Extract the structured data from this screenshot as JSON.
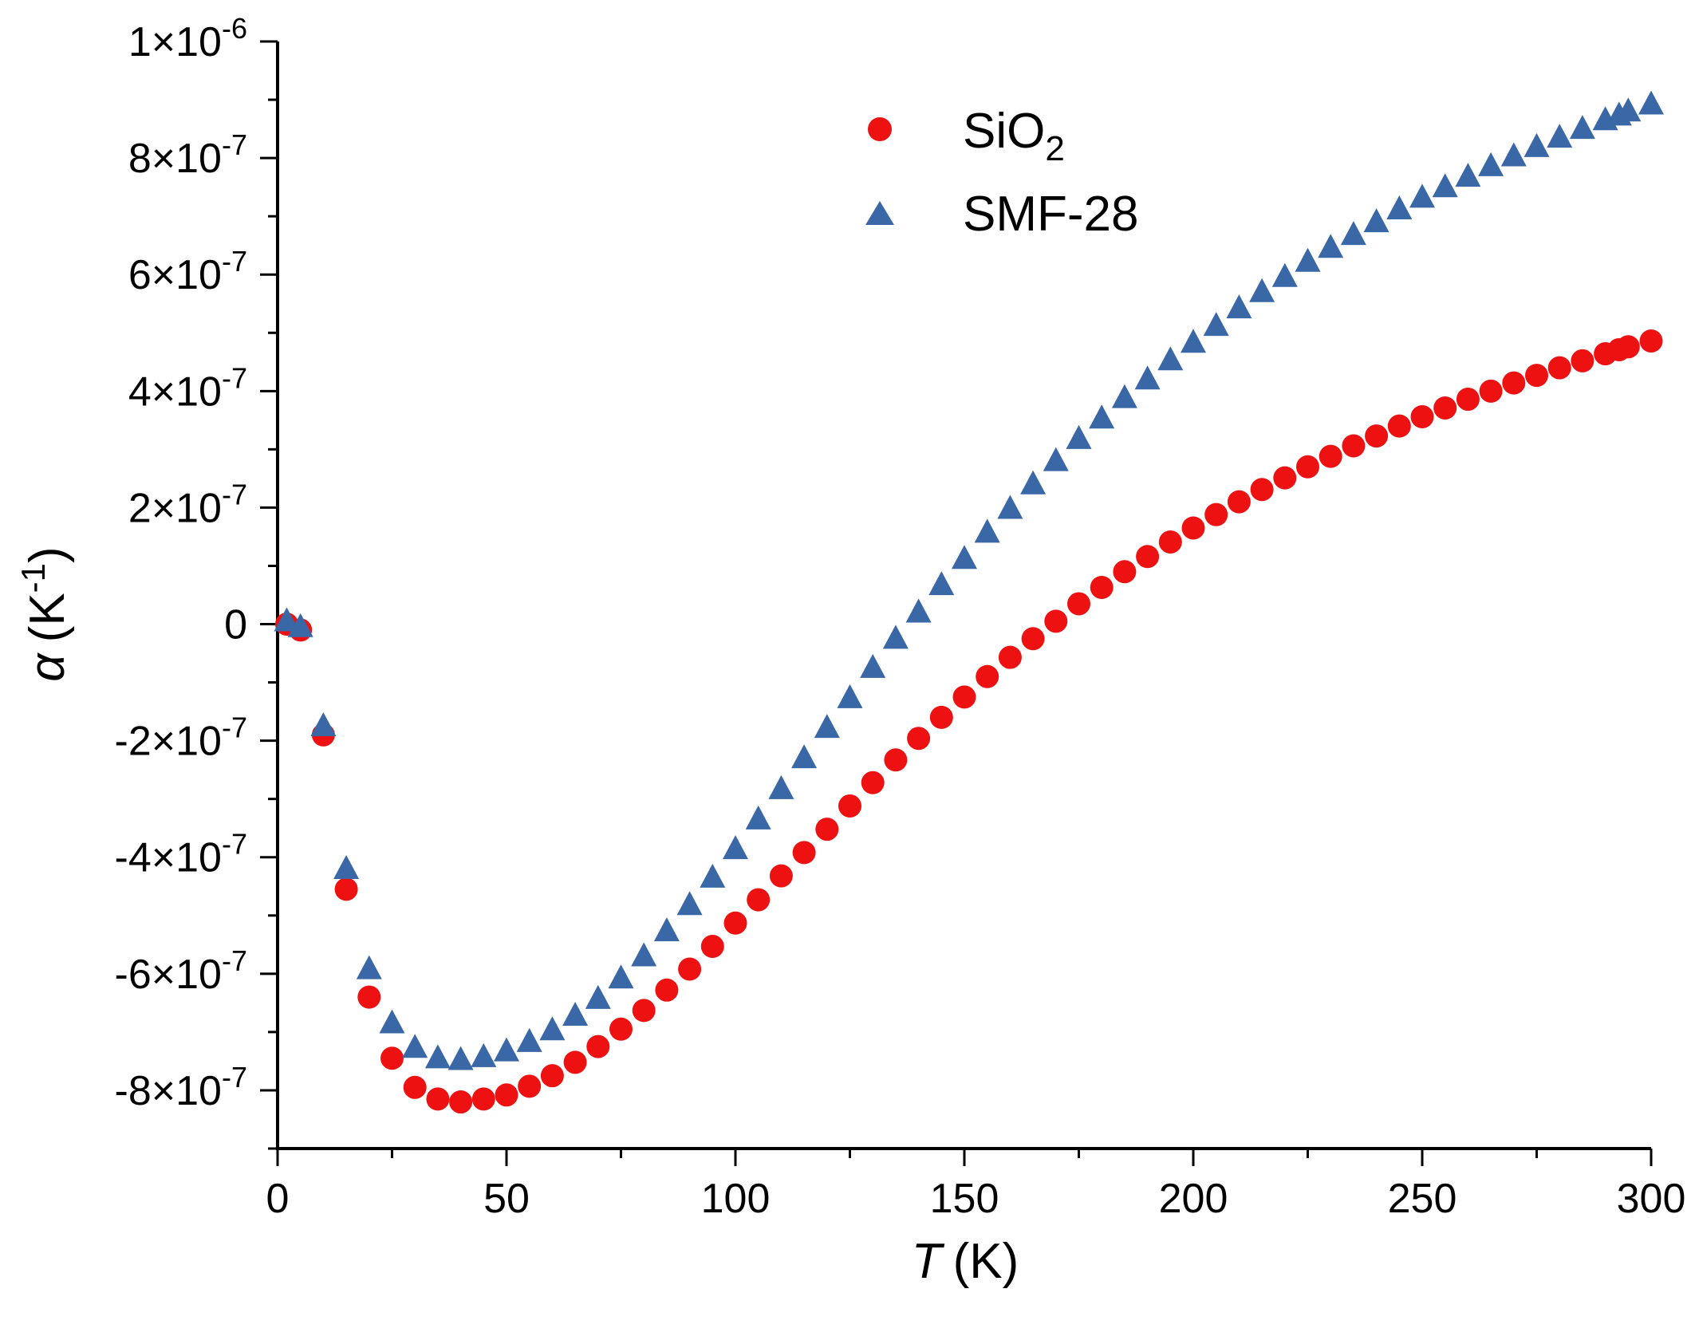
{
  "chart_data": {
    "type": "scatter",
    "title": "",
    "xlabel": {
      "symbol": "T",
      "unit": "(K)"
    },
    "ylabel": {
      "symbol": "α",
      "unit_open": "(K",
      "unit_exp": "-1",
      "unit_close": ")"
    },
    "xlim": [
      0,
      300
    ],
    "ylim": [
      -9e-07,
      1e-06
    ],
    "x_ticks": [
      {
        "value": 0,
        "label": "0"
      },
      {
        "value": 50,
        "label": "50"
      },
      {
        "value": 100,
        "label": "100"
      },
      {
        "value": 150,
        "label": "150"
      },
      {
        "value": 200,
        "label": "200"
      },
      {
        "value": 250,
        "label": "250"
      },
      {
        "value": 300,
        "label": "300"
      }
    ],
    "y_ticks": [
      {
        "value": 1e-06,
        "mantissa": "1×10",
        "exp": "-6"
      },
      {
        "value": 8e-07,
        "mantissa": "8×10",
        "exp": "-7"
      },
      {
        "value": 6e-07,
        "mantissa": "6×10",
        "exp": "-7"
      },
      {
        "value": 4e-07,
        "mantissa": "4×10",
        "exp": "-7"
      },
      {
        "value": 2e-07,
        "mantissa": "2×10",
        "exp": "-7"
      },
      {
        "value": 0,
        "mantissa": "0",
        "exp": ""
      },
      {
        "value": -2e-07,
        "mantissa": "-2×10",
        "exp": "-7"
      },
      {
        "value": -4e-07,
        "mantissa": "-4×10",
        "exp": "-7"
      },
      {
        "value": -6e-07,
        "mantissa": "-6×10",
        "exp": "-7"
      },
      {
        "value": -8e-07,
        "mantissa": "-8×10",
        "exp": "-7"
      }
    ],
    "grid": false,
    "legend_position": "top-center",
    "series": [
      {
        "name": "SiO",
        "name_sub": "2",
        "marker": "circle",
        "color": "#ee1111",
        "points": [
          [
            2,
            0
          ],
          [
            5,
            -1e-08
          ],
          [
            10,
            -1.9e-07
          ],
          [
            15,
            -4.55e-07
          ],
          [
            20,
            -6.4e-07
          ],
          [
            25,
            -7.45e-07
          ],
          [
            30,
            -7.95e-07
          ],
          [
            35,
            -8.15e-07
          ],
          [
            40,
            -8.2e-07
          ],
          [
            45,
            -8.15e-07
          ],
          [
            50,
            -8.08e-07
          ],
          [
            55,
            -7.93e-07
          ],
          [
            60,
            -7.75e-07
          ],
          [
            65,
            -7.52e-07
          ],
          [
            70,
            -7.25e-07
          ],
          [
            75,
            -6.95e-07
          ],
          [
            80,
            -6.63e-07
          ],
          [
            85,
            -6.28e-07
          ],
          [
            90,
            -5.92e-07
          ],
          [
            95,
            -5.53e-07
          ],
          [
            100,
            -5.13e-07
          ],
          [
            105,
            -4.73e-07
          ],
          [
            110,
            -4.32e-07
          ],
          [
            115,
            -3.92e-07
          ],
          [
            120,
            -3.52e-07
          ],
          [
            125,
            -3.12e-07
          ],
          [
            130,
            -2.72e-07
          ],
          [
            135,
            -2.33e-07
          ],
          [
            140,
            -1.96e-07
          ],
          [
            145,
            -1.6e-07
          ],
          [
            150,
            -1.25e-07
          ],
          [
            155,
            -9e-08
          ],
          [
            160,
            -5.7e-08
          ],
          [
            165,
            -2.5e-08
          ],
          [
            170,
            5e-09
          ],
          [
            175,
            3.5e-08
          ],
          [
            180,
            6.3e-08
          ],
          [
            185,
            9e-08
          ],
          [
            190,
            1.16e-07
          ],
          [
            195,
            1.41e-07
          ],
          [
            200,
            1.65e-07
          ],
          [
            205,
            1.88e-07
          ],
          [
            210,
            2.1e-07
          ],
          [
            215,
            2.31e-07
          ],
          [
            220,
            2.51e-07
          ],
          [
            225,
            2.7e-07
          ],
          [
            230,
            2.88e-07
          ],
          [
            235,
            3.06e-07
          ],
          [
            240,
            3.23e-07
          ],
          [
            245,
            3.4e-07
          ],
          [
            250,
            3.56e-07
          ],
          [
            255,
            3.71e-07
          ],
          [
            260,
            3.86e-07
          ],
          [
            265,
            4e-07
          ],
          [
            270,
            4.14e-07
          ],
          [
            275,
            4.27e-07
          ],
          [
            280,
            4.4e-07
          ],
          [
            285,
            4.52e-07
          ],
          [
            290,
            4.64e-07
          ],
          [
            293,
            4.71e-07
          ],
          [
            295,
            4.76e-07
          ],
          [
            300,
            4.86e-07
          ]
        ]
      },
      {
        "name": "SMF-28",
        "marker": "triangle",
        "color": "#3a67a6",
        "points": [
          [
            2,
            5e-09
          ],
          [
            5,
            -5e-09
          ],
          [
            10,
            -1.75e-07
          ],
          [
            15,
            -4.2e-07
          ],
          [
            20,
            -5.92e-07
          ],
          [
            25,
            -6.85e-07
          ],
          [
            30,
            -7.27e-07
          ],
          [
            35,
            -7.45e-07
          ],
          [
            40,
            -7.48e-07
          ],
          [
            45,
            -7.43e-07
          ],
          [
            50,
            -7.33e-07
          ],
          [
            55,
            -7.17e-07
          ],
          [
            60,
            -6.97e-07
          ],
          [
            65,
            -6.72e-07
          ],
          [
            70,
            -6.43e-07
          ],
          [
            75,
            -6.08e-07
          ],
          [
            80,
            -5.7e-07
          ],
          [
            85,
            -5.27e-07
          ],
          [
            90,
            -4.82e-07
          ],
          [
            95,
            -4.35e-07
          ],
          [
            100,
            -3.86e-07
          ],
          [
            105,
            -3.35e-07
          ],
          [
            110,
            -2.83e-07
          ],
          [
            115,
            -2.3e-07
          ],
          [
            120,
            -1.78e-07
          ],
          [
            125,
            -1.27e-07
          ],
          [
            130,
            -7.5e-08
          ],
          [
            135,
            -2.5e-08
          ],
          [
            140,
            2e-08
          ],
          [
            145,
            6.7e-08
          ],
          [
            150,
            1.12e-07
          ],
          [
            155,
            1.57e-07
          ],
          [
            160,
            1.98e-07
          ],
          [
            165,
            2.4e-07
          ],
          [
            170,
            2.8e-07
          ],
          [
            175,
            3.18e-07
          ],
          [
            180,
            3.53e-07
          ],
          [
            185,
            3.88e-07
          ],
          [
            190,
            4.2e-07
          ],
          [
            195,
            4.53e-07
          ],
          [
            200,
            4.83e-07
          ],
          [
            205,
            5.12e-07
          ],
          [
            210,
            5.42e-07
          ],
          [
            215,
            5.7e-07
          ],
          [
            220,
            5.96e-07
          ],
          [
            225,
            6.22e-07
          ],
          [
            230,
            6.46e-07
          ],
          [
            235,
            6.68e-07
          ],
          [
            240,
            6.9e-07
          ],
          [
            245,
            7.12e-07
          ],
          [
            250,
            7.32e-07
          ],
          [
            255,
            7.5e-07
          ],
          [
            260,
            7.68e-07
          ],
          [
            265,
            7.86e-07
          ],
          [
            270,
            8.03e-07
          ],
          [
            275,
            8.19e-07
          ],
          [
            280,
            8.35e-07
          ],
          [
            285,
            8.5e-07
          ],
          [
            290,
            8.65e-07
          ],
          [
            293,
            8.73e-07
          ],
          [
            295,
            8.8e-07
          ],
          [
            300,
            8.92e-07
          ]
        ]
      }
    ]
  }
}
